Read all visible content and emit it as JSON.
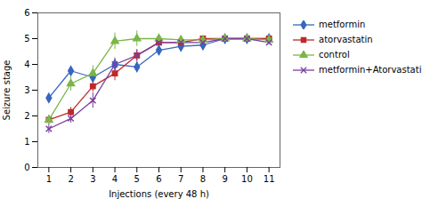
{
  "chart_data": {
    "type": "line",
    "xlabel": "Injections (every 48 h)",
    "ylabel": "Seizure stage",
    "x": [
      1,
      2,
      3,
      4,
      5,
      6,
      7,
      8,
      9,
      10,
      11
    ],
    "series": [
      {
        "name": "metformin",
        "color": "#3666c0",
        "marker": "diamond",
        "values": [
          2.7,
          3.75,
          3.5,
          4.0,
          3.9,
          4.55,
          4.7,
          4.75,
          5.0,
          5.0,
          5.0
        ],
        "errors": [
          0.12,
          0.12,
          0.22,
          0.18,
          0.22,
          0.12,
          0.12,
          0.12,
          0.07,
          0.07,
          0.07
        ]
      },
      {
        "name": "atorvastatin",
        "color": "#c0282a",
        "marker": "square",
        "values": [
          1.85,
          2.15,
          3.15,
          3.65,
          4.35,
          4.85,
          4.85,
          5.0,
          5.0,
          5.0,
          5.0
        ],
        "errors": [
          0.12,
          0.18,
          0.22,
          0.28,
          0.22,
          0.12,
          0.12,
          0.09,
          0.09,
          0.07,
          0.07
        ]
      },
      {
        "name": "control",
        "color": "#7ab648",
        "marker": "triangle",
        "values": [
          1.85,
          3.25,
          3.65,
          4.9,
          5.0,
          5.0,
          4.95,
          4.95,
          5.0,
          5.0,
          4.95
        ],
        "errors": [
          0.18,
          0.28,
          0.3,
          0.32,
          0.3,
          0.18,
          0.12,
          0.12,
          0.09,
          0.09,
          0.09
        ]
      },
      {
        "name": "metformin+Atorvastatin",
        "color": "#7b3fa0",
        "marker": "x",
        "values": [
          1.5,
          1.9,
          2.6,
          4.0,
          4.35,
          4.85,
          4.85,
          4.85,
          5.0,
          5.0,
          4.85
        ],
        "errors": [
          0.18,
          0.18,
          0.3,
          0.25,
          0.22,
          0.12,
          0.12,
          0.12,
          0.09,
          0.07,
          0.07
        ]
      }
    ],
    "xlim": [
      0.5,
      11.5
    ],
    "ylim": [
      0,
      6
    ],
    "xticks": [
      1,
      2,
      3,
      4,
      5,
      6,
      7,
      8,
      9,
      10,
      11
    ],
    "yticks": [
      0,
      1,
      2,
      3,
      4,
      5,
      6
    ],
    "legend": "right",
    "grid": false
  }
}
